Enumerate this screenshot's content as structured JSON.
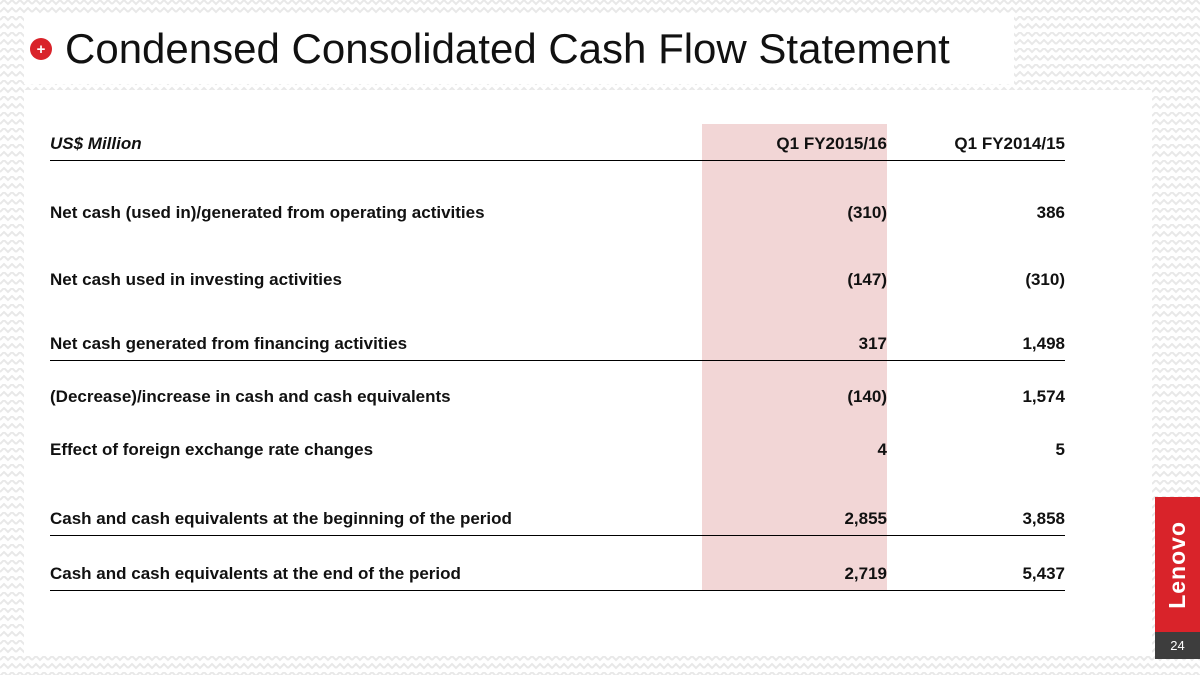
{
  "slide": {
    "title": "Condensed Consolidated Cash Flow Statement",
    "bullet_glyph": "+",
    "page_number": "24",
    "logo_text": "Lenovo"
  },
  "colors": {
    "accent_red": "#d9232a",
    "band_pink": "#f2d6d6",
    "page_box_gray": "#3d3d3d",
    "pattern_gray": "#e8e8e8"
  },
  "table": {
    "unit_label": "US$ Million",
    "columns": [
      "Q1 FY2015/16",
      "Q1 FY2014/15"
    ],
    "rows": [
      {
        "label": "Net cash (used in)/generated from operating activities",
        "values": [
          "(310)",
          "386"
        ],
        "rule": false
      },
      {
        "label": "Net cash used in investing activities",
        "values": [
          "(147)",
          "(310)"
        ],
        "rule": false
      },
      {
        "label": "Net cash generated from financing activities",
        "values": [
          "317",
          "1,498"
        ],
        "rule": true
      },
      {
        "label": "(Decrease)/increase in cash and cash equivalents",
        "values": [
          "(140)",
          "1,574"
        ],
        "rule": false
      },
      {
        "label": "Effect of foreign exchange rate changes",
        "values": [
          "4",
          "5"
        ],
        "rule": false
      },
      {
        "label": "Cash and cash equivalents at the beginning of the period",
        "values": [
          "2,855",
          "3,858"
        ],
        "rule": true
      },
      {
        "label": "Cash and cash equivalents at the end of the period",
        "values": [
          "2,719",
          "5,437"
        ],
        "rule": true
      }
    ]
  }
}
